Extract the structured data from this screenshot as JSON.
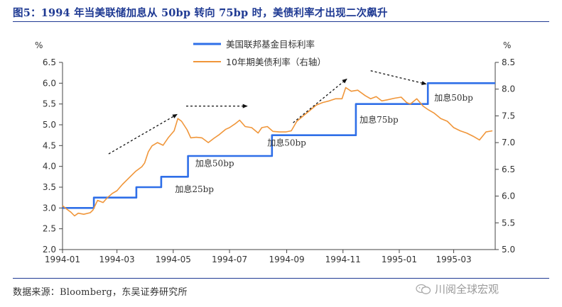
{
  "header": {
    "title": "图5：1994 年当美联储加息从 50bp 转向 75bp 时，美债利率才出现二次飙升"
  },
  "footer": {
    "source": "数据来源：Bloomberg，东吴证券研究所",
    "watermark": "川阅全球宏观"
  },
  "colors": {
    "fed_funds": "#2f6fe8",
    "treasury_10y": "#f0963a",
    "axis": "#444444",
    "title": "#1f3a93"
  },
  "chart_data": {
    "type": "line",
    "title": "",
    "x_axis": {
      "type": "date",
      "range": [
        "1994-01-01",
        "1995-04-15"
      ],
      "ticks": [
        "1994-01",
        "1994-03",
        "1994-05",
        "1994-07",
        "1994-09",
        "1994-11",
        "1995-01",
        "1995-03"
      ]
    },
    "y_left": {
      "label": "%",
      "range": [
        2.0,
        6.5
      ],
      "ticks": [
        2.0,
        2.5,
        3.0,
        3.5,
        4.0,
        4.5,
        5.0,
        5.5,
        6.0,
        6.5
      ]
    },
    "y_right": {
      "label": "%",
      "range": [
        5.0,
        8.5
      ],
      "ticks": [
        5.0,
        5.5,
        6.0,
        6.5,
        7.0,
        7.5,
        8.0,
        8.5
      ]
    },
    "grid": false,
    "legend": {
      "position": "top-center"
    },
    "series": [
      {
        "name": "美国联邦基金目标利率",
        "axis": "left",
        "step": true,
        "points": [
          [
            "1994-01-01",
            3.0
          ],
          [
            "1994-02-04",
            3.25
          ],
          [
            "1994-03-22",
            3.5
          ],
          [
            "1994-04-18",
            3.75
          ],
          [
            "1994-05-17",
            4.25
          ],
          [
            "1994-08-16",
            4.75
          ],
          [
            "1994-11-15",
            5.5
          ],
          [
            "1995-02-01",
            6.0
          ],
          [
            "1995-04-15",
            6.0
          ]
        ]
      },
      {
        "name": "10年期美债利率（右轴）",
        "axis": "right",
        "step": false,
        "points": [
          [
            "1994-01-01",
            5.82
          ],
          [
            "1994-01-06",
            5.75
          ],
          [
            "1994-01-10",
            5.7
          ],
          [
            "1994-01-14",
            5.63
          ],
          [
            "1994-01-18",
            5.68
          ],
          [
            "1994-01-24",
            5.66
          ],
          [
            "1994-01-31",
            5.69
          ],
          [
            "1994-02-03",
            5.74
          ],
          [
            "1994-02-08",
            5.92
          ],
          [
            "1994-02-14",
            5.88
          ],
          [
            "1994-02-18",
            5.96
          ],
          [
            "1994-02-24",
            6.05
          ],
          [
            "1994-03-01",
            6.1
          ],
          [
            "1994-03-07",
            6.22
          ],
          [
            "1994-03-14",
            6.34
          ],
          [
            "1994-03-21",
            6.46
          ],
          [
            "1994-03-28",
            6.55
          ],
          [
            "1994-03-31",
            6.62
          ],
          [
            "1994-04-04",
            6.83
          ],
          [
            "1994-04-08",
            6.94
          ],
          [
            "1994-04-14",
            7.0
          ],
          [
            "1994-04-20",
            6.95
          ],
          [
            "1994-04-26",
            7.1
          ],
          [
            "1994-05-02",
            7.22
          ],
          [
            "1994-05-06",
            7.45
          ],
          [
            "1994-05-10",
            7.4
          ],
          [
            "1994-05-16",
            7.24
          ],
          [
            "1994-05-20",
            7.09
          ],
          [
            "1994-05-26",
            7.1
          ],
          [
            "1994-06-01",
            7.09
          ],
          [
            "1994-06-08",
            7.0
          ],
          [
            "1994-06-14",
            7.08
          ],
          [
            "1994-06-20",
            7.15
          ],
          [
            "1994-06-27",
            7.25
          ],
          [
            "1994-07-01",
            7.28
          ],
          [
            "1994-07-07",
            7.35
          ],
          [
            "1994-07-12",
            7.42
          ],
          [
            "1994-07-18",
            7.3
          ],
          [
            "1994-07-25",
            7.28
          ],
          [
            "1994-08-01",
            7.18
          ],
          [
            "1994-08-05",
            7.28
          ],
          [
            "1994-08-11",
            7.3
          ],
          [
            "1994-08-17",
            7.21
          ],
          [
            "1994-08-24",
            7.2
          ],
          [
            "1994-08-31",
            7.2
          ],
          [
            "1994-09-06",
            7.22
          ],
          [
            "1994-09-12",
            7.4
          ],
          [
            "1994-09-19",
            7.5
          ],
          [
            "1994-09-26",
            7.6
          ],
          [
            "1994-10-03",
            7.7
          ],
          [
            "1994-10-10",
            7.75
          ],
          [
            "1994-10-17",
            7.78
          ],
          [
            "1994-10-24",
            7.82
          ],
          [
            "1994-10-31",
            7.82
          ],
          [
            "1994-11-04",
            8.03
          ],
          [
            "1994-11-10",
            7.96
          ],
          [
            "1994-11-17",
            7.98
          ],
          [
            "1994-11-25",
            7.88
          ],
          [
            "1994-12-01",
            7.82
          ],
          [
            "1994-12-07",
            7.86
          ],
          [
            "1994-12-13",
            7.78
          ],
          [
            "1994-12-19",
            7.8
          ],
          [
            "1994-12-27",
            7.83
          ],
          [
            "1995-01-03",
            7.85
          ],
          [
            "1995-01-09",
            7.75
          ],
          [
            "1995-01-13",
            7.72
          ],
          [
            "1995-01-20",
            7.82
          ],
          [
            "1995-01-27",
            7.68
          ],
          [
            "1995-02-01",
            7.62
          ],
          [
            "1995-02-08",
            7.55
          ],
          [
            "1995-02-15",
            7.45
          ],
          [
            "1995-02-22",
            7.4
          ],
          [
            "1995-03-01",
            7.28
          ],
          [
            "1995-03-08",
            7.22
          ],
          [
            "1995-03-15",
            7.18
          ],
          [
            "1995-03-22",
            7.12
          ],
          [
            "1995-03-29",
            7.05
          ],
          [
            "1995-04-05",
            7.2
          ],
          [
            "1995-04-12",
            7.22
          ]
        ]
      }
    ],
    "annotations": [
      {
        "text": "加息25bp",
        "date": "1994-05-24",
        "value": 3.38
      },
      {
        "text": "加息50bp",
        "date": "1994-06-15",
        "value": 4.0
      },
      {
        "text": "加息50bp",
        "date": "1994-09-01",
        "value": 4.5
      },
      {
        "text": "加息75bp",
        "date": "1994-12-10",
        "value": 5.05
      },
      {
        "text": "加息50bp",
        "date": "1995-03-01",
        "value": 5.58
      }
    ],
    "trend_arrows": [
      {
        "style": "dashed",
        "from": [
          "1994-02-20",
          4.3
        ],
        "to": [
          "1994-05-05",
          5.25
        ]
      },
      {
        "style": "dashed",
        "from": [
          "1994-05-15",
          5.45
        ],
        "to": [
          "1994-07-20",
          5.45
        ]
      },
      {
        "style": "dashed",
        "from": [
          "1994-09-08",
          5.05
        ],
        "to": [
          "1994-11-05",
          6.1
        ]
      },
      {
        "style": "dashed",
        "from": [
          "1994-12-01",
          6.3
        ],
        "to": [
          "1995-01-30",
          5.98
        ]
      }
    ]
  }
}
